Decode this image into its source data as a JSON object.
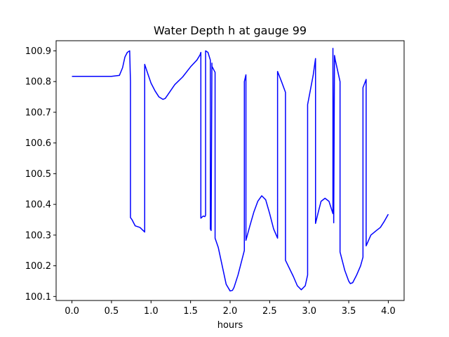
{
  "chart_data": {
    "type": "line",
    "title": "Water Depth h at gauge 99",
    "xlabel": "hours",
    "ylabel": "",
    "xlim": [
      -0.2,
      4.2
    ],
    "ylim": [
      100.087,
      100.933
    ],
    "xticks": [
      0.0,
      0.5,
      1.0,
      1.5,
      2.0,
      2.5,
      3.0,
      3.5,
      4.0
    ],
    "xtick_labels": [
      "0.0",
      "0.5",
      "1.0",
      "1.5",
      "2.0",
      "2.5",
      "3.0",
      "3.5",
      "4.0"
    ],
    "yticks": [
      100.1,
      100.2,
      100.3,
      100.4,
      100.5,
      100.6,
      100.7,
      100.8,
      100.9
    ],
    "ytick_labels": [
      "100.1",
      "100.2",
      "100.3",
      "100.4",
      "100.5",
      "100.6",
      "100.7",
      "100.8",
      "100.9"
    ],
    "grid": false,
    "series": [
      {
        "color": "#0000ff",
        "x": [
          0.0,
          0.5,
          0.6,
          0.64,
          0.67,
          0.7,
          0.73,
          0.74,
          0.74,
          0.76,
          0.8,
          0.86,
          0.9,
          0.92,
          0.92,
          0.96,
          1.0,
          1.05,
          1.1,
          1.15,
          1.18,
          1.22,
          1.3,
          1.4,
          1.5,
          1.58,
          1.62,
          1.63,
          1.63,
          1.66,
          1.68,
          1.69,
          1.69,
          1.72,
          1.75,
          1.75,
          1.76,
          1.77,
          1.77,
          1.79,
          1.81,
          1.81,
          1.85,
          1.9,
          1.95,
          2.0,
          2.03,
          2.05,
          2.1,
          2.15,
          2.18,
          2.18,
          2.2,
          2.2,
          2.25,
          2.3,
          2.35,
          2.4,
          2.45,
          2.5,
          2.55,
          2.6,
          2.6,
          2.65,
          2.7,
          2.7,
          2.8,
          2.85,
          2.9,
          2.95,
          2.98,
          2.98,
          3.05,
          3.08,
          3.08,
          3.12,
          3.15,
          3.2,
          3.25,
          3.3,
          3.3,
          3.31,
          3.32,
          3.33,
          3.39,
          3.39,
          3.45,
          3.5,
          3.52,
          3.55,
          3.6,
          3.65,
          3.68,
          3.68,
          3.72,
          3.72,
          3.78,
          3.85,
          3.9,
          3.95,
          4.0
        ],
        "y": [
          100.817,
          100.817,
          100.82,
          100.845,
          100.88,
          100.895,
          100.9,
          100.8,
          100.357,
          100.35,
          100.33,
          100.325,
          100.315,
          100.31,
          100.856,
          100.825,
          100.795,
          100.77,
          100.75,
          100.742,
          100.745,
          100.76,
          100.79,
          100.815,
          100.848,
          100.87,
          100.887,
          100.895,
          100.355,
          100.362,
          100.36,
          100.365,
          100.9,
          100.895,
          100.87,
          100.32,
          100.315,
          100.86,
          100.85,
          100.84,
          100.83,
          100.29,
          100.26,
          100.2,
          100.14,
          100.118,
          100.12,
          100.13,
          100.17,
          100.22,
          100.25,
          100.8,
          100.822,
          100.283,
          100.33,
          100.375,
          100.41,
          100.428,
          100.415,
          100.37,
          100.32,
          100.29,
          100.833,
          100.8,
          100.765,
          100.218,
          100.165,
          100.135,
          100.122,
          100.135,
          100.17,
          100.725,
          100.82,
          100.875,
          100.338,
          100.38,
          100.41,
          100.42,
          100.41,
          100.37,
          100.908,
          100.34,
          100.885,
          100.87,
          100.8,
          100.245,
          100.185,
          100.15,
          100.142,
          100.145,
          100.17,
          100.2,
          100.228,
          100.78,
          100.807,
          100.265,
          100.3,
          100.315,
          100.325,
          100.345,
          100.368
        ]
      }
    ]
  }
}
